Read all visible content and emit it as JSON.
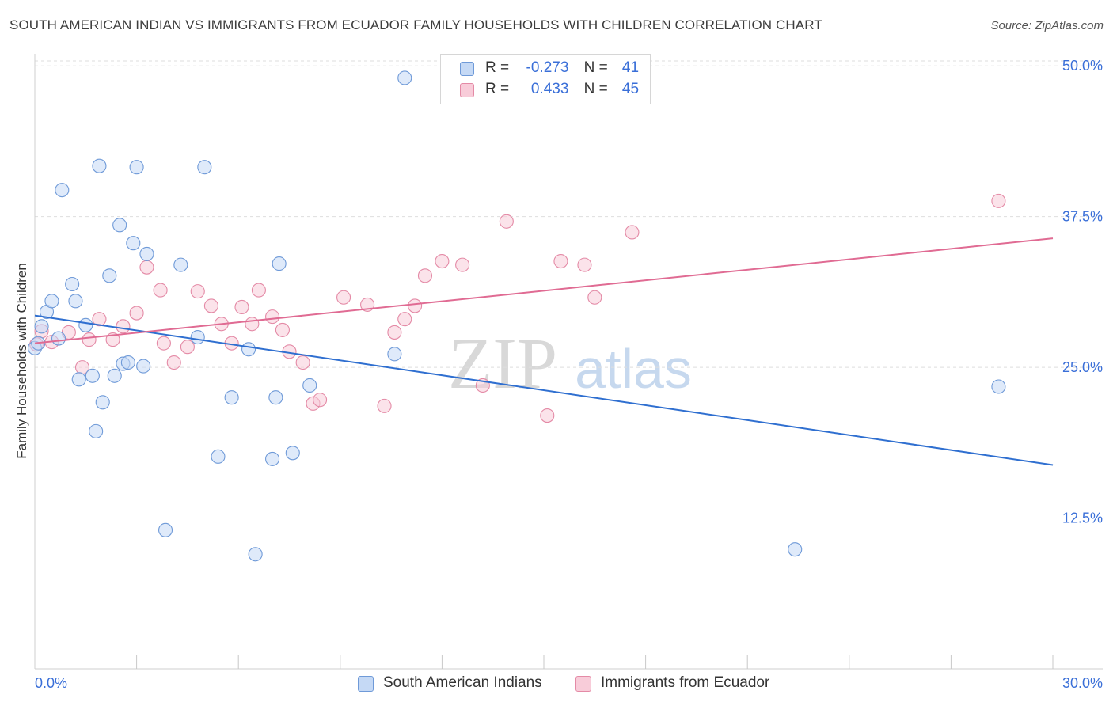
{
  "header": {
    "title": "SOUTH AMERICAN INDIAN VS IMMIGRANTS FROM ECUADOR FAMILY HOUSEHOLDS WITH CHILDREN CORRELATION CHART",
    "source": "Source: ZipAtlas.com"
  },
  "watermark": {
    "zip": "ZIP",
    "atlas": "atlas"
  },
  "legend": {
    "rows": [
      {
        "r_label": "R =",
        "r_value": "-0.273",
        "n_label": "N =",
        "n_value": "41"
      },
      {
        "r_label": "R =",
        "r_value": "0.433",
        "n_label": "N =",
        "n_value": "45"
      }
    ]
  },
  "chart_data": {
    "type": "scatter",
    "title": "SOUTH AMERICAN INDIAN VS IMMIGRANTS FROM ECUADOR FAMILY HOUSEHOLDS WITH CHILDREN CORRELATION CHART",
    "xlabel": "",
    "ylabel": "Family Households with Children",
    "xlim": [
      0,
      30
    ],
    "ylim": [
      0,
      51
    ],
    "x_tick_labels": [
      "0.0%",
      "30.0%"
    ],
    "y_ticks": [
      12.5,
      25.0,
      37.5,
      50.0
    ],
    "y_tick_labels": [
      "12.5%",
      "25.0%",
      "37.5%",
      "50.0%"
    ],
    "grid": true,
    "colors": {
      "blue_fill": "#c5d9f5",
      "blue_stroke": "#6f9ad8",
      "blue_line": "#2f6fd0",
      "pink_fill": "#f8ccd9",
      "pink_stroke": "#e48aa6",
      "pink_line": "#e06b93",
      "tick_label": "#3a6fd8"
    },
    "series": [
      {
        "name": "South American Indians",
        "points": [
          [
            0.0,
            26.6
          ],
          [
            0.2,
            28.4
          ],
          [
            0.35,
            29.6
          ],
          [
            0.5,
            30.5
          ],
          [
            0.7,
            27.4
          ],
          [
            0.8,
            39.7
          ],
          [
            1.1,
            31.9
          ],
          [
            1.2,
            30.5
          ],
          [
            1.3,
            24.0
          ],
          [
            1.5,
            28.5
          ],
          [
            1.7,
            24.3
          ],
          [
            1.8,
            19.7
          ],
          [
            1.9,
            41.7
          ],
          [
            2.0,
            22.1
          ],
          [
            2.2,
            32.6
          ],
          [
            2.35,
            24.3
          ],
          [
            2.5,
            36.8
          ],
          [
            2.6,
            25.3
          ],
          [
            2.75,
            25.4
          ],
          [
            2.9,
            35.3
          ],
          [
            3.0,
            41.6
          ],
          [
            3.2,
            25.1
          ],
          [
            3.3,
            34.4
          ],
          [
            3.85,
            11.5
          ],
          [
            4.3,
            33.5
          ],
          [
            4.8,
            27.5
          ],
          [
            5.0,
            41.6
          ],
          [
            5.4,
            17.6
          ],
          [
            5.8,
            22.5
          ],
          [
            6.3,
            26.5
          ],
          [
            6.5,
            9.5
          ],
          [
            7.0,
            17.4
          ],
          [
            7.2,
            33.6
          ],
          [
            7.1,
            22.5
          ],
          [
            7.6,
            17.9
          ],
          [
            8.1,
            23.5
          ],
          [
            10.9,
            49.0
          ],
          [
            10.6,
            26.1
          ],
          [
            22.4,
            9.9
          ],
          [
            28.4,
            23.4
          ],
          [
            0.1,
            27.0
          ]
        ]
      },
      {
        "name": "Immigrants from Ecuador",
        "points": [
          [
            0.2,
            28.0
          ],
          [
            0.5,
            27.1
          ],
          [
            1.0,
            27.9
          ],
          [
            1.4,
            25.0
          ],
          [
            1.6,
            27.3
          ],
          [
            1.9,
            29.0
          ],
          [
            2.3,
            27.3
          ],
          [
            2.6,
            28.4
          ],
          [
            3.0,
            29.5
          ],
          [
            3.3,
            33.3
          ],
          [
            3.7,
            31.4
          ],
          [
            3.8,
            27.0
          ],
          [
            4.1,
            25.4
          ],
          [
            4.5,
            26.7
          ],
          [
            4.8,
            31.3
          ],
          [
            5.2,
            30.1
          ],
          [
            5.5,
            28.6
          ],
          [
            5.8,
            27.0
          ],
          [
            6.1,
            30.0
          ],
          [
            6.4,
            28.6
          ],
          [
            6.6,
            31.4
          ],
          [
            7.0,
            29.2
          ],
          [
            7.3,
            28.1
          ],
          [
            7.5,
            26.3
          ],
          [
            7.9,
            25.4
          ],
          [
            8.2,
            22.0
          ],
          [
            8.4,
            22.3
          ],
          [
            9.1,
            30.8
          ],
          [
            9.8,
            30.2
          ],
          [
            10.3,
            21.8
          ],
          [
            10.6,
            27.9
          ],
          [
            10.9,
            29.0
          ],
          [
            11.2,
            30.1
          ],
          [
            11.5,
            32.6
          ],
          [
            12.0,
            33.8
          ],
          [
            12.6,
            33.5
          ],
          [
            13.2,
            23.5
          ],
          [
            13.9,
            37.1
          ],
          [
            15.1,
            21.0
          ],
          [
            15.5,
            33.8
          ],
          [
            16.2,
            33.5
          ],
          [
            16.5,
            30.8
          ],
          [
            17.6,
            36.2
          ],
          [
            28.4,
            38.8
          ],
          [
            0.05,
            26.9
          ]
        ]
      }
    ],
    "trendlines": [
      {
        "series": "South American Indians",
        "x": [
          0,
          30
        ],
        "y": [
          29.3,
          16.9
        ]
      },
      {
        "series": "Immigrants from Ecuador",
        "x": [
          0,
          30
        ],
        "y": [
          27.0,
          35.7
        ]
      }
    ]
  }
}
